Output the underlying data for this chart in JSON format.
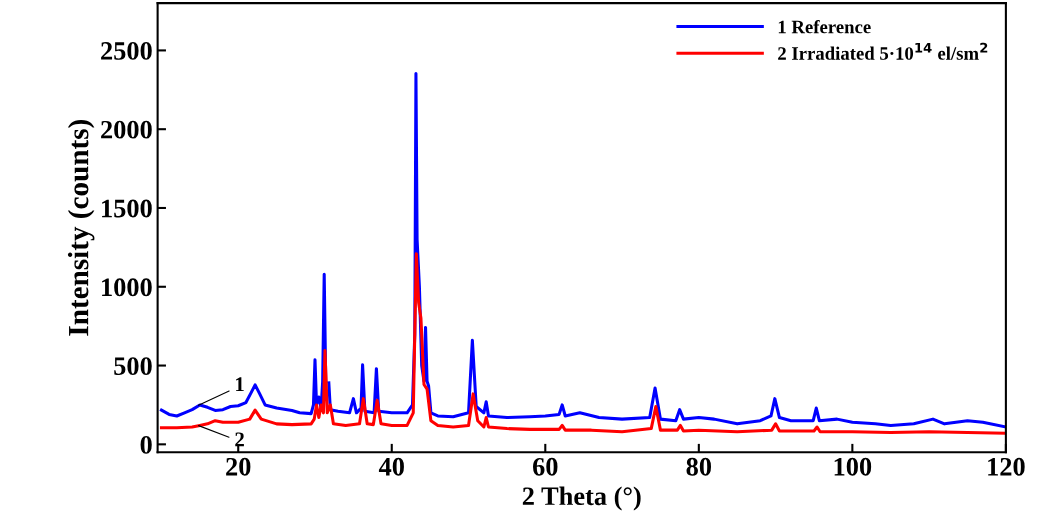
{
  "chart_data": {
    "type": "line",
    "xlabel": "2 Theta (°)",
    "ylabel": "Intensity (counts)",
    "xlim": [
      9.5,
      120
    ],
    "ylim": [
      -50,
      2800
    ],
    "xticks": [
      20,
      40,
      60,
      80,
      100,
      120
    ],
    "yticks": [
      0,
      500,
      1000,
      1500,
      2000,
      2500
    ],
    "grid": false,
    "legend": "top right",
    "line_style": "solid",
    "marker": "none",
    "series": [
      {
        "name": "1 Reference",
        "color": "#0000ff",
        "x": [
          10,
          11,
          12,
          13,
          14,
          15,
          16,
          17,
          18,
          19,
          20,
          21,
          21.7,
          22.2,
          22.8,
          23.5,
          25,
          27,
          28,
          29.5,
          29.8,
          30.0,
          30.2,
          30.5,
          30.8,
          31.0,
          31.2,
          31.4,
          31.6,
          31.8,
          32.0,
          33,
          34.5,
          35.0,
          35.4,
          36.0,
          36.2,
          36.5,
          37.7,
          38.0,
          38.3,
          40,
          42,
          42.7,
          43.0,
          43.15,
          43.3,
          43.6,
          43.9,
          44.2,
          44.4,
          44.6,
          44.8,
          45.1,
          46,
          48,
          50.0,
          50.5,
          51.0,
          52.0,
          52.3,
          52.6,
          55,
          58,
          60,
          61.8,
          62.2,
          62.6,
          64.5,
          67,
          70,
          73.6,
          74.3,
          75.0,
          77.0,
          77.5,
          78.0,
          80,
          82,
          85,
          88,
          89.4,
          89.9,
          90.5,
          92,
          94.9,
          95.3,
          95.7,
          98,
          100,
          103,
          105,
          108,
          110.5,
          112,
          115,
          117,
          120
        ],
        "values": [
          217,
          190,
          180,
          200,
          220,
          250,
          235,
          215,
          220,
          240,
          245,
          265,
          330,
          377,
          320,
          250,
          230,
          215,
          200,
          195,
          250,
          537,
          250,
          300,
          230,
          400,
          1080,
          400,
          null,
          390,
          220,
          210,
          200,
          290,
          200,
          230,
          505,
          210,
          200,
          480,
          210,
          200,
          200,
          250,
          700,
          2353,
          1300,
          1000,
          500,
          400,
          742,
          400,
          370,
          200,
          180,
          175,
          200,
          660,
          240,
          200,
          270,
          180,
          170,
          175,
          180,
          190,
          250,
          180,
          200,
          170,
          160,
          170,
          358,
          160,
          150,
          220,
          160,
          170,
          160,
          130,
          150,
          180,
          290,
          170,
          150,
          150,
          230,
          150,
          160,
          140,
          130,
          120,
          130,
          160,
          130,
          150,
          140,
          110
        ]
      },
      {
        "name": "2 Irradiated 5·10$^{14}$ el/sm$^{2}$",
        "color": "#ff0000",
        "x": [
          10,
          12,
          14,
          15,
          16,
          17,
          18,
          20,
          21.5,
          22.2,
          23,
          25,
          27,
          29.5,
          29.9,
          30.2,
          30.5,
          30.8,
          31.1,
          31.3,
          31.6,
          32.0,
          32.4,
          34,
          35.8,
          36.3,
          36.8,
          37.6,
          38.1,
          38.6,
          40,
          42,
          42.8,
          43.2,
          43.5,
          43.8,
          44.2,
          44.6,
          45.1,
          46,
          48,
          50.0,
          50.6,
          51.2,
          52.0,
          52.3,
          52.6,
          55,
          58,
          61.8,
          62.2,
          62.6,
          66,
          70,
          73.8,
          74.4,
          75.0,
          77.2,
          77.6,
          78.0,
          80,
          85,
          89.5,
          90.0,
          90.5,
          95.0,
          95.4,
          95.8,
          100,
          105,
          110,
          115,
          120
        ],
        "values": [
          105,
          105,
          110,
          120,
          130,
          150,
          140,
          140,
          160,
          217,
          160,
          130,
          125,
          130,
          160,
          250,
          170,
          250,
          200,
          595,
          200,
          250,
          130,
          120,
          130,
          290,
          130,
          125,
          280,
          130,
          120,
          120,
          200,
          1210,
          900,
          800,
          380,
          350,
          150,
          120,
          110,
          120,
          320,
          150,
          110,
          170,
          110,
          100,
          95,
          95,
          120,
          90,
          90,
          80,
          100,
          240,
          90,
          90,
          120,
          85,
          90,
          80,
          90,
          130,
          85,
          85,
          110,
          80,
          80,
          75,
          80,
          75,
          70
        ]
      }
    ],
    "annotations": [
      {
        "text": "1",
        "x": 14.5,
        "y": 240
      },
      {
        "text": "2",
        "x": 14.5,
        "y": 125
      }
    ]
  }
}
